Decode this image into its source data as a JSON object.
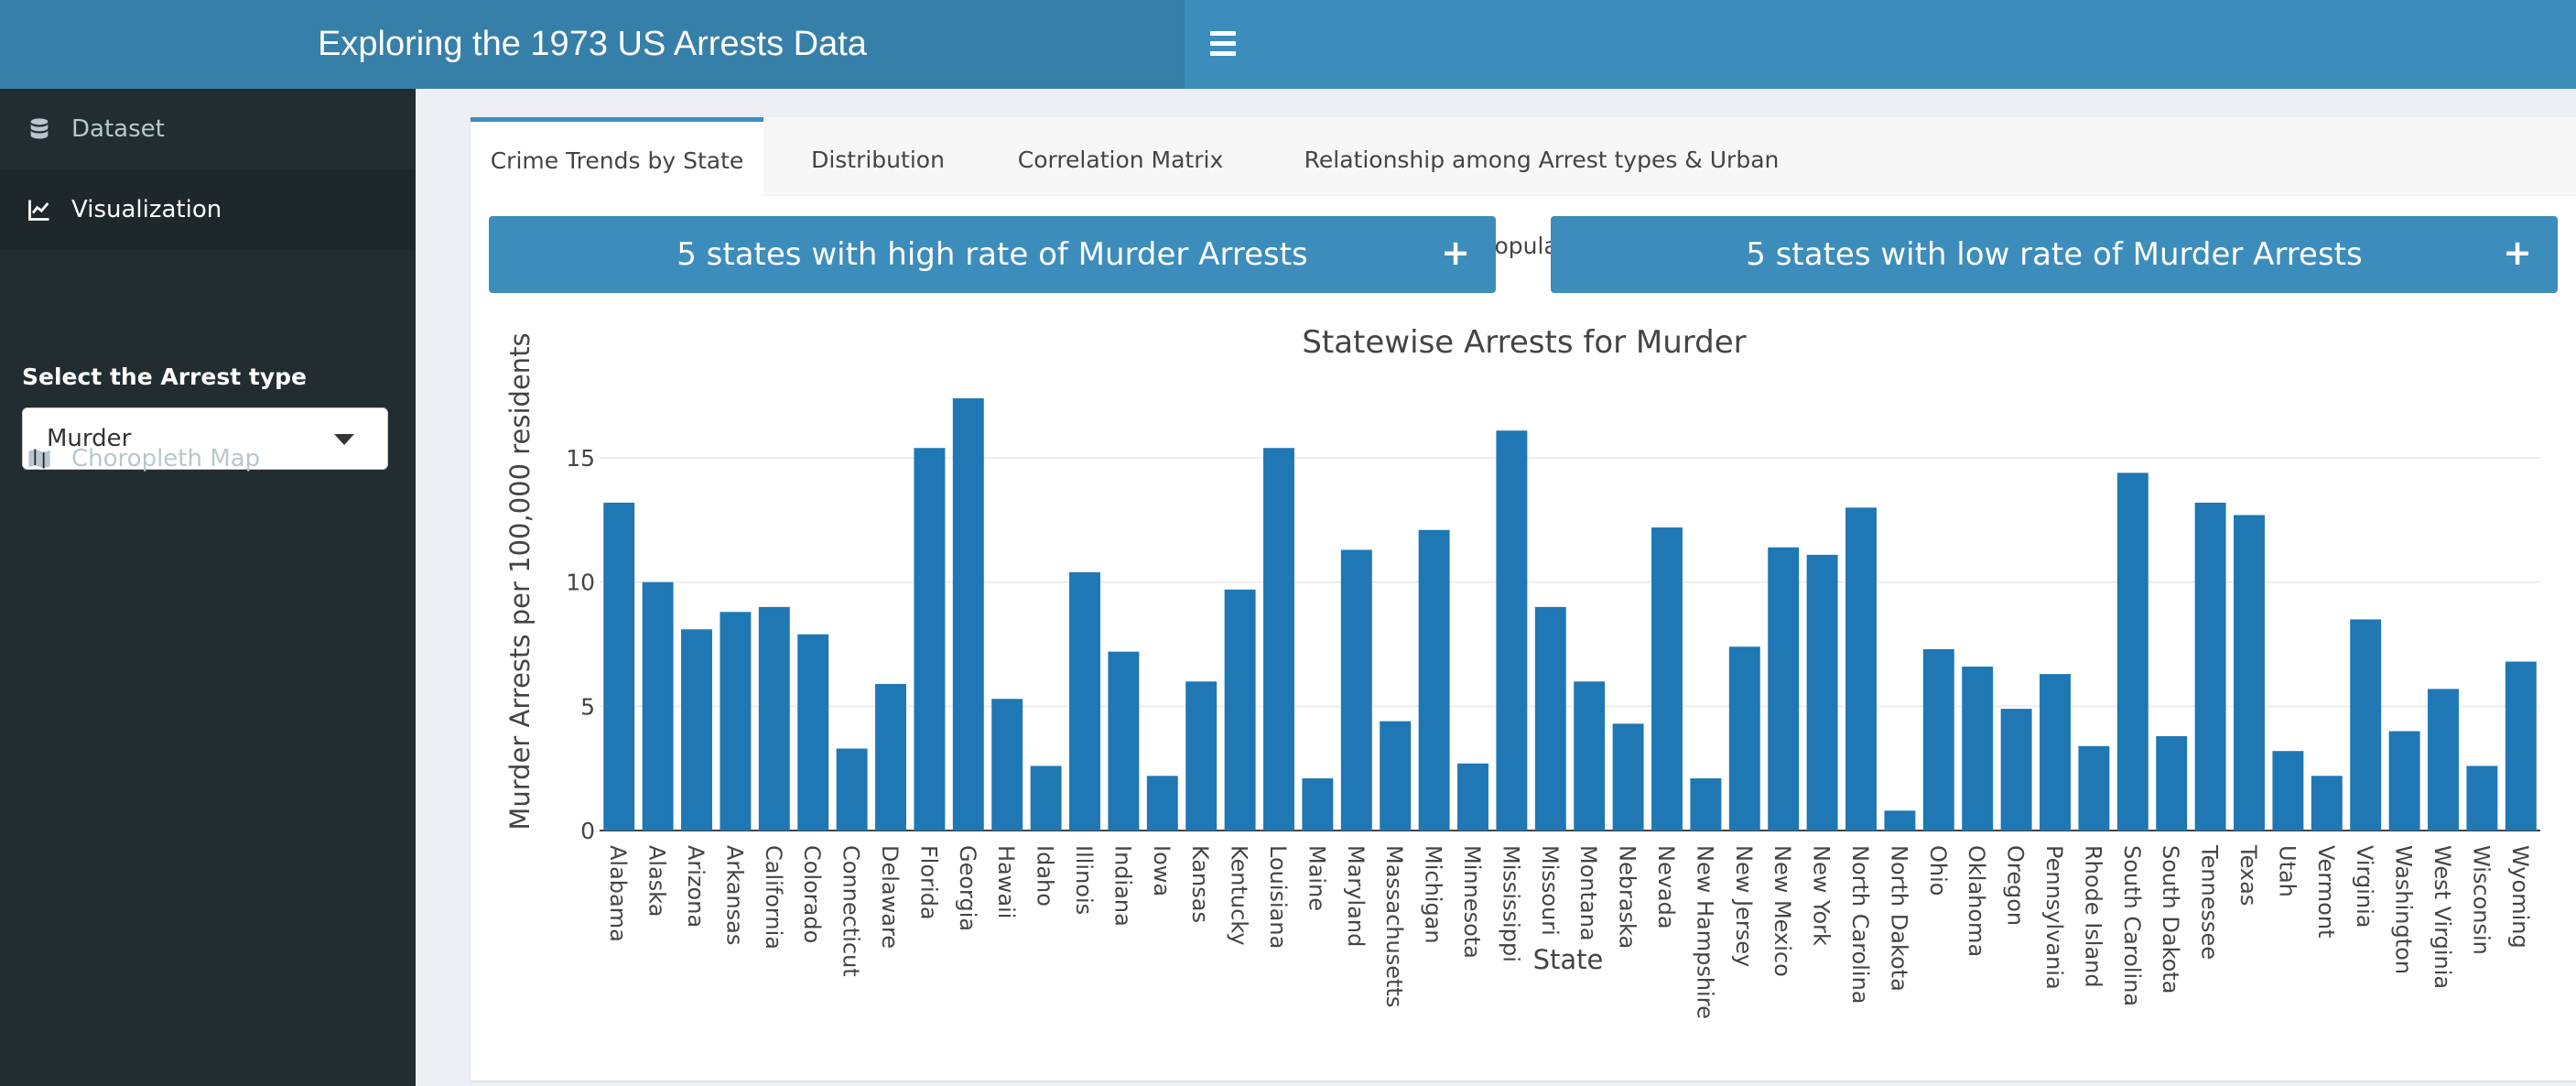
{
  "header": {
    "title": "Exploring the 1973 US Arrests Data",
    "menu_icon": "hamburger-icon"
  },
  "sidebar": {
    "items": [
      {
        "label": "Dataset",
        "icon": "database-icon"
      },
      {
        "label": "Visualization",
        "icon": "line-chart-icon"
      },
      {
        "label": "Choropleth Map",
        "icon": "map-icon"
      }
    ],
    "select_label": "Select the Arrest type",
    "select_value": "Murder"
  },
  "tabs": [
    {
      "label": "Crime Trends by State"
    },
    {
      "label": "Distribution"
    },
    {
      "label": "Correlation Matrix"
    },
    {
      "label": "Relationship among Arrest types & Urban Population"
    }
  ],
  "boxes": {
    "high": "5 states with high rate of Murder Arrests",
    "low": "5 states with low rate of Murder Arrests",
    "toggle": "+"
  },
  "colors": {
    "header": "#3c8dbc",
    "logo": "#367fa9",
    "sidebar": "#222d32",
    "bar": "#1f77b4"
  },
  "chart_data": {
    "type": "bar",
    "title": "Statewise Arrests for Murder",
    "xlabel": "State",
    "ylabel": "Murder Arrests per 100,000 residents",
    "ylim": [
      0,
      17.4
    ],
    "yticks": [
      0,
      5,
      10,
      15
    ],
    "grid": true,
    "categories": [
      "Alabama",
      "Alaska",
      "Arizona",
      "Arkansas",
      "California",
      "Colorado",
      "Connecticut",
      "Delaware",
      "Florida",
      "Georgia",
      "Hawaii",
      "Idaho",
      "Illinois",
      "Indiana",
      "Iowa",
      "Kansas",
      "Kentucky",
      "Louisiana",
      "Maine",
      "Maryland",
      "Massachusetts",
      "Michigan",
      "Minnesota",
      "Mississippi",
      "Missouri",
      "Montana",
      "Nebraska",
      "Nevada",
      "New Hampshire",
      "New Jersey",
      "New Mexico",
      "New York",
      "North Carolina",
      "North Dakota",
      "Ohio",
      "Oklahoma",
      "Oregon",
      "Pennsylvania",
      "Rhode Island",
      "South Carolina",
      "South Dakota",
      "Tennessee",
      "Texas",
      "Utah",
      "Vermont",
      "Virginia",
      "Washington",
      "West Virginia",
      "Wisconsin",
      "Wyoming"
    ],
    "values": [
      13.2,
      10,
      8.1,
      8.8,
      9,
      7.9,
      3.3,
      5.9,
      15.4,
      17.4,
      5.3,
      2.6,
      10.4,
      7.2,
      2.2,
      6,
      9.7,
      15.4,
      2.1,
      11.3,
      4.4,
      12.1,
      2.7,
      16.1,
      9,
      6,
      4.3,
      12.2,
      2.1,
      7.4,
      11.4,
      11.1,
      13,
      0.8,
      7.3,
      6.6,
      4.9,
      6.3,
      3.4,
      14.4,
      3.8,
      13.2,
      12.7,
      3.2,
      2.2,
      8.5,
      4,
      5.7,
      2.6,
      6.8
    ]
  }
}
